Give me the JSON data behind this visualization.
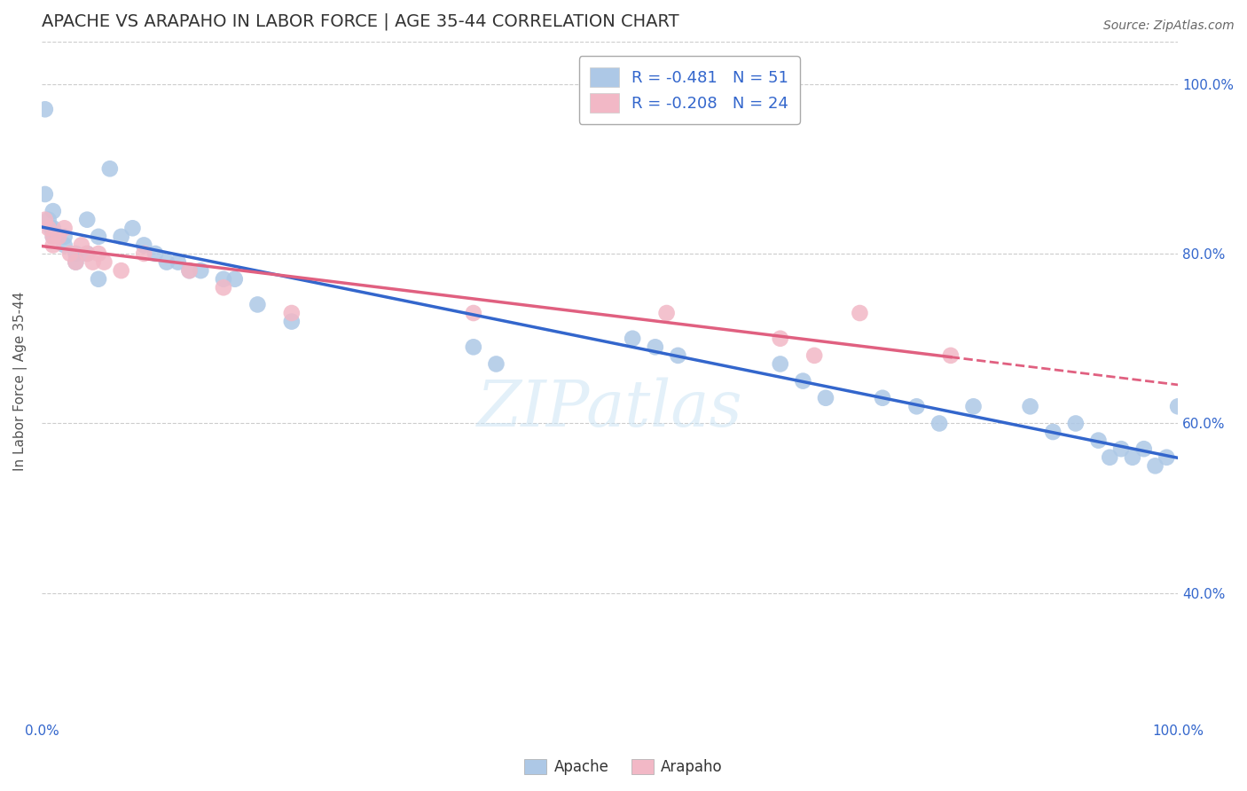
{
  "title": "APACHE VS ARAPAHO IN LABOR FORCE | AGE 35-44 CORRELATION CHART",
  "source": "Source: ZipAtlas.com",
  "ylabel": "In Labor Force | Age 35-44",
  "xlim": [
    0.0,
    1.0
  ],
  "ylim": [
    0.25,
    1.05
  ],
  "apache_R": -0.481,
  "apache_N": 51,
  "arapaho_R": -0.208,
  "arapaho_N": 24,
  "apache_color": "#adc8e6",
  "arapaho_color": "#f2b8c6",
  "apache_line_color": "#3366cc",
  "arapaho_line_color": "#e06080",
  "apache_x": [
    0.003,
    0.003,
    0.006,
    0.008,
    0.01,
    0.01,
    0.01,
    0.02,
    0.02,
    0.03,
    0.03,
    0.04,
    0.04,
    0.05,
    0.05,
    0.06,
    0.07,
    0.08,
    0.09,
    0.1,
    0.11,
    0.12,
    0.13,
    0.14,
    0.16,
    0.17,
    0.19,
    0.22,
    0.38,
    0.4,
    0.52,
    0.54,
    0.56,
    0.65,
    0.67,
    0.69,
    0.74,
    0.77,
    0.79,
    0.82,
    0.87,
    0.89,
    0.91,
    0.93,
    0.94,
    0.95,
    0.96,
    0.97,
    0.98,
    0.99,
    1.0
  ],
  "apache_y": [
    0.97,
    0.87,
    0.84,
    0.83,
    0.85,
    0.83,
    0.82,
    0.82,
    0.81,
    0.8,
    0.79,
    0.84,
    0.8,
    0.82,
    0.77,
    0.9,
    0.82,
    0.83,
    0.81,
    0.8,
    0.79,
    0.79,
    0.78,
    0.78,
    0.77,
    0.77,
    0.74,
    0.72,
    0.69,
    0.67,
    0.7,
    0.69,
    0.68,
    0.67,
    0.65,
    0.63,
    0.63,
    0.62,
    0.6,
    0.62,
    0.62,
    0.59,
    0.6,
    0.58,
    0.56,
    0.57,
    0.56,
    0.57,
    0.55,
    0.56,
    0.62
  ],
  "arapaho_x": [
    0.003,
    0.006,
    0.01,
    0.01,
    0.015,
    0.02,
    0.025,
    0.03,
    0.035,
    0.04,
    0.045,
    0.05,
    0.055,
    0.07,
    0.09,
    0.13,
    0.16,
    0.22,
    0.38,
    0.55,
    0.65,
    0.68,
    0.72,
    0.8
  ],
  "arapaho_y": [
    0.84,
    0.83,
    0.82,
    0.81,
    0.82,
    0.83,
    0.8,
    0.79,
    0.81,
    0.8,
    0.79,
    0.8,
    0.79,
    0.78,
    0.8,
    0.78,
    0.76,
    0.73,
    0.73,
    0.73,
    0.7,
    0.68,
    0.73,
    0.68
  ],
  "watermark_text": "ZIPatlas",
  "title_fontsize": 14,
  "axis_label_fontsize": 11,
  "tick_fontsize": 11,
  "source_fontsize": 10,
  "legend_fontsize": 13
}
